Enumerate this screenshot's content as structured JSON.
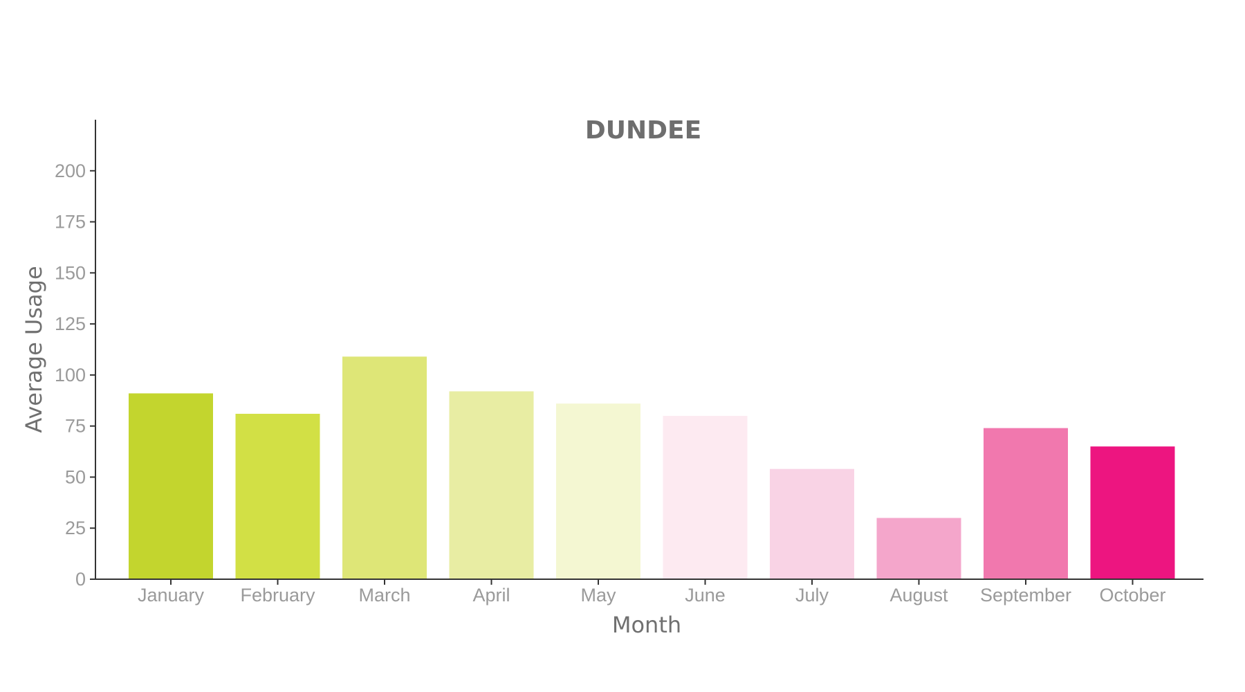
{
  "chart_data": {
    "type": "bar",
    "title": "DUNDEE",
    "xlabel": "Month",
    "ylabel": "Average Usage",
    "categories": [
      "January",
      "February",
      "March",
      "April",
      "May",
      "June",
      "July",
      "August",
      "September",
      "October"
    ],
    "values": [
      91,
      81,
      109,
      92,
      86,
      80,
      54,
      30,
      74,
      65
    ],
    "colors": [
      "#c3d52e",
      "#d2e045",
      "#dee677",
      "#e8eda3",
      "#f4f7d2",
      "#fdeaf1",
      "#f9d3e5",
      "#f4a6cb",
      "#f178ae",
      "#ed1580"
    ],
    "ylim": [
      0,
      225
    ],
    "yticks": [
      0,
      25,
      50,
      75,
      100,
      125,
      150,
      175,
      200
    ],
    "grid": false,
    "legend": "none"
  }
}
